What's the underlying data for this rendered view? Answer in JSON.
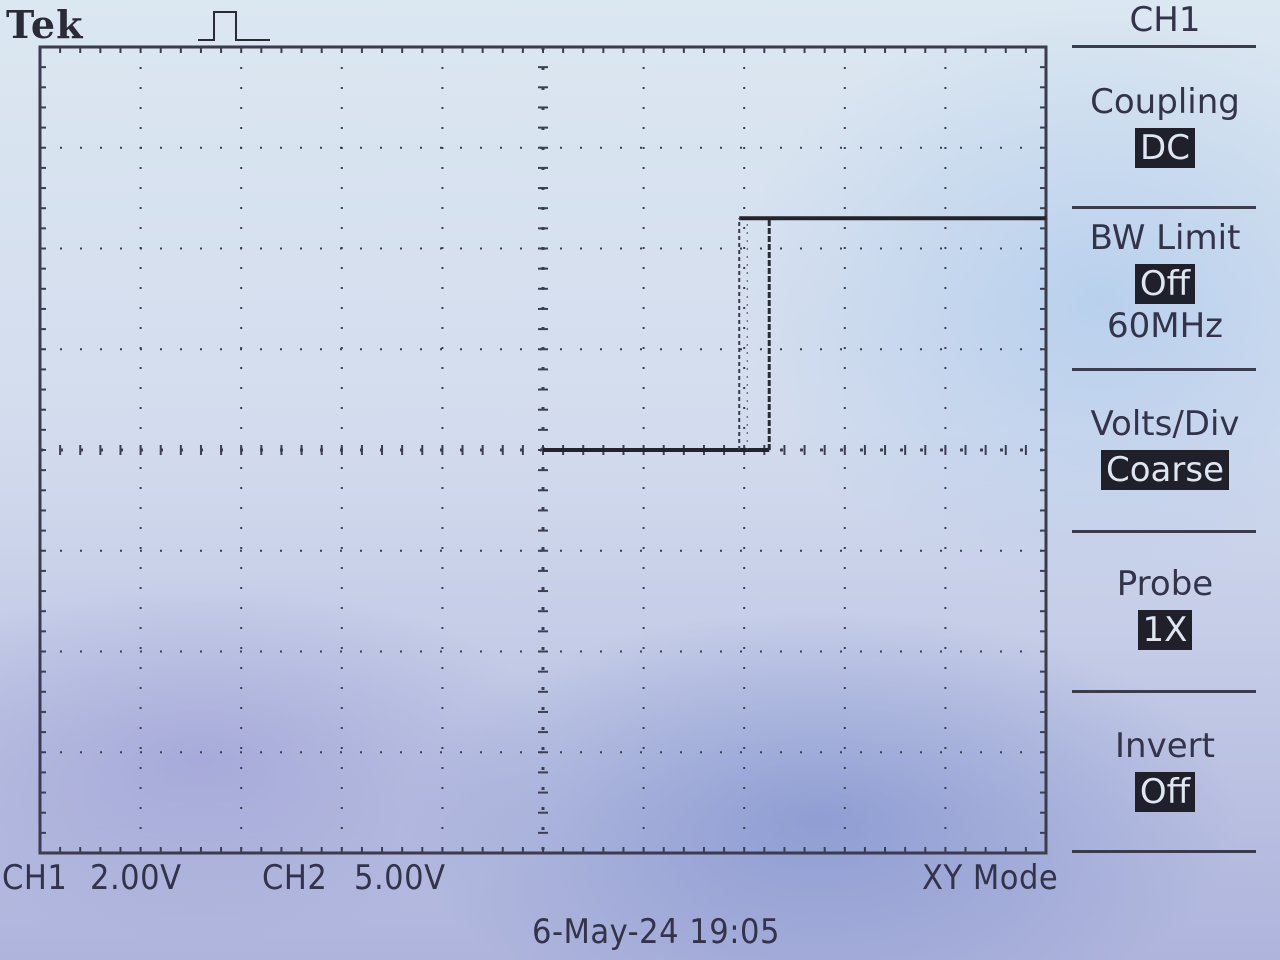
{
  "header": {
    "brand": "Tek",
    "trigger_icon": "pulse-trigger-icon"
  },
  "display": {
    "trace": {
      "low_level_div": 0,
      "high_level_div": 2.3,
      "start_div": 0,
      "edge_div": 2.05,
      "end_div": 5
    }
  },
  "status": {
    "ch1_label": "CH1",
    "ch1_scale": "2.00V",
    "ch2_label": "CH2",
    "ch2_scale": "5.00V",
    "mode": "XY Mode",
    "datetime": "6-May-24 19:05"
  },
  "menu": {
    "title": "CH1",
    "coupling": {
      "label": "Coupling",
      "value": "DC"
    },
    "bw_limit": {
      "label": "BW Limit",
      "value": "Off",
      "sub": "60MHz"
    },
    "volts_div": {
      "label": "Volts/Div",
      "value": "Coarse"
    },
    "probe": {
      "label": "Probe",
      "value": "1X"
    },
    "invert": {
      "label": "Invert",
      "value": "Off"
    }
  }
}
